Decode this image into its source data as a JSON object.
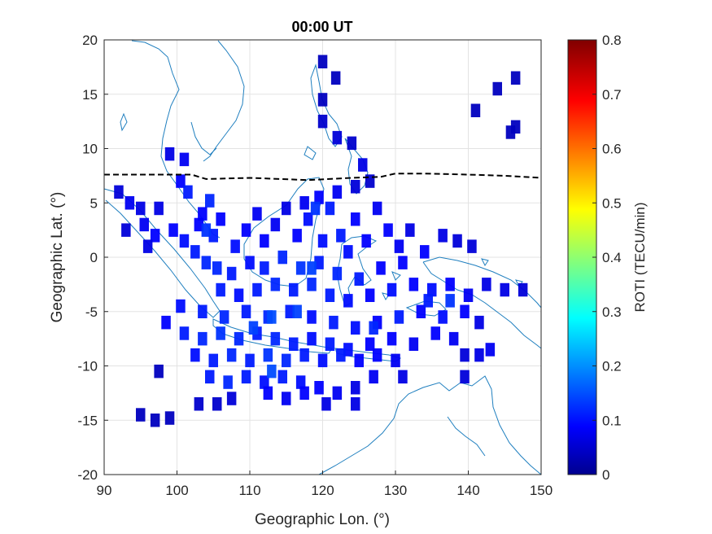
{
  "chart_data": {
    "type": "heatmap",
    "title": "00:00 UT",
    "xlabel": "Geographic Lon. (°)",
    "ylabel": "Geographic Lat. (°)",
    "xlim": [
      90,
      150
    ],
    "ylim": [
      -20,
      20
    ],
    "xticks": [
      "90",
      "100",
      "110",
      "120",
      "130",
      "140",
      "150"
    ],
    "yticks": [
      "20",
      "15",
      "10",
      "5",
      "0",
      "-5",
      "-10",
      "-15",
      "-20"
    ],
    "grid": true,
    "colorbar": {
      "label": "ROTI (TECU/min)",
      "range": [
        0,
        0.8
      ],
      "ticks": [
        "0.8",
        "0.7",
        "0.6",
        "0.5",
        "0.4",
        "0.3",
        "0.2",
        "0.1",
        "0"
      ],
      "colormap": "jet"
    },
    "magnetic_equator_line": {
      "style": "dashed",
      "color": "#000000",
      "points": [
        [
          90,
          7.6
        ],
        [
          100,
          7.6
        ],
        [
          102,
          7.6
        ],
        [
          104,
          7.2
        ],
        [
          110,
          7.3
        ],
        [
          118,
          7.1
        ],
        [
          124,
          7.3
        ],
        [
          128,
          7.4
        ],
        [
          130,
          7.7
        ],
        [
          134,
          7.7
        ],
        [
          140,
          7.6
        ],
        [
          145,
          7.5
        ],
        [
          150,
          7.3
        ]
      ]
    },
    "coastline_color": "#1f7fbf",
    "cells": [
      {
        "lon": 120,
        "lat": 18,
        "v": 0.05
      },
      {
        "lon": 121.8,
        "lat": 16.5,
        "v": 0.05
      },
      {
        "lon": 120,
        "lat": 14.5,
        "v": 0.05
      },
      {
        "lon": 120,
        "lat": 12.5,
        "v": 0.06
      },
      {
        "lon": 122,
        "lat": 11,
        "v": 0.07
      },
      {
        "lon": 124,
        "lat": 10.5,
        "v": 0.06
      },
      {
        "lon": 125.5,
        "lat": 8.5,
        "v": 0.08
      },
      {
        "lon": 124.5,
        "lat": 6.5,
        "v": 0.07
      },
      {
        "lon": 126.5,
        "lat": 7,
        "v": 0.06
      },
      {
        "lon": 146.5,
        "lat": 16.5,
        "v": 0.05
      },
      {
        "lon": 144,
        "lat": 15.5,
        "v": 0.05
      },
      {
        "lon": 141,
        "lat": 13.5,
        "v": 0.05
      },
      {
        "lon": 146.5,
        "lat": 12,
        "v": 0.05
      },
      {
        "lon": 145.8,
        "lat": 11.5,
        "v": 0.05
      },
      {
        "lon": 99,
        "lat": 9.5,
        "v": 0.08
      },
      {
        "lon": 101,
        "lat": 9,
        "v": 0.09
      },
      {
        "lon": 100.5,
        "lat": 7,
        "v": 0.1
      },
      {
        "lon": 101.5,
        "lat": 6,
        "v": 0.12
      },
      {
        "lon": 104.5,
        "lat": 5.2,
        "v": 0.13
      },
      {
        "lon": 103.5,
        "lat": 4,
        "v": 0.1
      },
      {
        "lon": 92,
        "lat": 6,
        "v": 0.07
      },
      {
        "lon": 93.5,
        "lat": 5,
        "v": 0.09
      },
      {
        "lon": 95,
        "lat": 4.5,
        "v": 0.08
      },
      {
        "lon": 93,
        "lat": 2.5,
        "v": 0.07
      },
      {
        "lon": 95.5,
        "lat": 3,
        "v": 0.09
      },
      {
        "lon": 97,
        "lat": 2,
        "v": 0.1
      },
      {
        "lon": 97.5,
        "lat": 4.5,
        "v": 0.08
      },
      {
        "lon": 99.5,
        "lat": 2.5,
        "v": 0.1
      },
      {
        "lon": 96,
        "lat": 1,
        "v": 0.08
      },
      {
        "lon": 101,
        "lat": 1.5,
        "v": 0.11
      },
      {
        "lon": 102.5,
        "lat": 0.5,
        "v": 0.12
      },
      {
        "lon": 104,
        "lat": -0.5,
        "v": 0.13
      },
      {
        "lon": 103,
        "lat": 3,
        "v": 0.1
      },
      {
        "lon": 105,
        "lat": 2,
        "v": 0.12
      },
      {
        "lon": 106,
        "lat": 3.5,
        "v": 0.1
      },
      {
        "lon": 108,
        "lat": 1,
        "v": 0.11
      },
      {
        "lon": 109.5,
        "lat": 2.5,
        "v": 0.1
      },
      {
        "lon": 111,
        "lat": 4,
        "v": 0.09
      },
      {
        "lon": 112,
        "lat": 1.5,
        "v": 0.1
      },
      {
        "lon": 113.5,
        "lat": 3,
        "v": 0.09
      },
      {
        "lon": 115,
        "lat": 4.5,
        "v": 0.08
      },
      {
        "lon": 116.5,
        "lat": 2,
        "v": 0.1
      },
      {
        "lon": 118,
        "lat": 3.5,
        "v": 0.11
      },
      {
        "lon": 117.5,
        "lat": 5,
        "v": 0.09
      },
      {
        "lon": 119.5,
        "lat": 5.5,
        "v": 0.1
      },
      {
        "lon": 121,
        "lat": 4.5,
        "v": 0.12
      },
      {
        "lon": 122,
        "lat": 6,
        "v": 0.09
      },
      {
        "lon": 120,
        "lat": 1.5,
        "v": 0.11
      },
      {
        "lon": 122.5,
        "lat": 2,
        "v": 0.12
      },
      {
        "lon": 124.5,
        "lat": 3.5,
        "v": 0.1
      },
      {
        "lon": 123.5,
        "lat": 0.5,
        "v": 0.11
      },
      {
        "lon": 126,
        "lat": 1.5,
        "v": 0.1
      },
      {
        "lon": 127.5,
        "lat": 4.5,
        "v": 0.09
      },
      {
        "lon": 129,
        "lat": 2.5,
        "v": 0.1
      },
      {
        "lon": 130.5,
        "lat": 1,
        "v": 0.09
      },
      {
        "lon": 132,
        "lat": 2.5,
        "v": 0.08
      },
      {
        "lon": 134,
        "lat": 0.5,
        "v": 0.1
      },
      {
        "lon": 136.5,
        "lat": 2,
        "v": 0.08
      },
      {
        "lon": 138.5,
        "lat": 1.5,
        "v": 0.07
      },
      {
        "lon": 140.5,
        "lat": 1,
        "v": 0.07
      },
      {
        "lon": 131,
        "lat": -0.5,
        "v": 0.1
      },
      {
        "lon": 128,
        "lat": -1,
        "v": 0.1
      },
      {
        "lon": 125,
        "lat": -2,
        "v": 0.12
      },
      {
        "lon": 122,
        "lat": -1.5,
        "v": 0.13
      },
      {
        "lon": 119.5,
        "lat": -0.5,
        "v": 0.12
      },
      {
        "lon": 117,
        "lat": -1,
        "v": 0.14
      },
      {
        "lon": 114.5,
        "lat": 0,
        "v": 0.13
      },
      {
        "lon": 112,
        "lat": -1,
        "v": 0.12
      },
      {
        "lon": 110,
        "lat": -0.5,
        "v": 0.11
      },
      {
        "lon": 107.5,
        "lat": -1.5,
        "v": 0.12
      },
      {
        "lon": 105.5,
        "lat": -1,
        "v": 0.13
      },
      {
        "lon": 106,
        "lat": -3,
        "v": 0.12
      },
      {
        "lon": 108.5,
        "lat": -3.5,
        "v": 0.11
      },
      {
        "lon": 111,
        "lat": -3,
        "v": 0.12
      },
      {
        "lon": 113.5,
        "lat": -2.5,
        "v": 0.13
      },
      {
        "lon": 116,
        "lat": -3,
        "v": 0.12
      },
      {
        "lon": 118.5,
        "lat": -2.5,
        "v": 0.13
      },
      {
        "lon": 121,
        "lat": -3.5,
        "v": 0.12
      },
      {
        "lon": 123.5,
        "lat": -4,
        "v": 0.11
      },
      {
        "lon": 126.5,
        "lat": -3.5,
        "v": 0.1
      },
      {
        "lon": 129.5,
        "lat": -3,
        "v": 0.11
      },
      {
        "lon": 132.5,
        "lat": -2.5,
        "v": 0.1
      },
      {
        "lon": 135,
        "lat": -3,
        "v": 0.11
      },
      {
        "lon": 137.5,
        "lat": -2.5,
        "v": 0.1
      },
      {
        "lon": 140,
        "lat": -3.5,
        "v": 0.09
      },
      {
        "lon": 142.5,
        "lat": -2.5,
        "v": 0.08
      },
      {
        "lon": 145,
        "lat": -3,
        "v": 0.08
      },
      {
        "lon": 147.5,
        "lat": -3,
        "v": 0.07
      },
      {
        "lon": 139.5,
        "lat": -5,
        "v": 0.1
      },
      {
        "lon": 136.5,
        "lat": -5.5,
        "v": 0.11
      },
      {
        "lon": 133.5,
        "lat": -5,
        "v": 0.1
      },
      {
        "lon": 130.5,
        "lat": -5.5,
        "v": 0.12
      },
      {
        "lon": 127.5,
        "lat": -6,
        "v": 0.1
      },
      {
        "lon": 124.5,
        "lat": -6.5,
        "v": 0.11
      },
      {
        "lon": 121.5,
        "lat": -6,
        "v": 0.12
      },
      {
        "lon": 118.5,
        "lat": -5.5,
        "v": 0.11
      },
      {
        "lon": 115.5,
        "lat": -5,
        "v": 0.12
      },
      {
        "lon": 112.5,
        "lat": -5.5,
        "v": 0.13
      },
      {
        "lon": 109.5,
        "lat": -5,
        "v": 0.12
      },
      {
        "lon": 106.5,
        "lat": -5.5,
        "v": 0.13
      },
      {
        "lon": 103.5,
        "lat": -5,
        "v": 0.12
      },
      {
        "lon": 100.5,
        "lat": -4.5,
        "v": 0.11
      },
      {
        "lon": 98.5,
        "lat": -6,
        "v": 0.1
      },
      {
        "lon": 101,
        "lat": -7,
        "v": 0.12
      },
      {
        "lon": 103.5,
        "lat": -7.5,
        "v": 0.13
      },
      {
        "lon": 106,
        "lat": -7,
        "v": 0.14
      },
      {
        "lon": 108.5,
        "lat": -7.5,
        "v": 0.13
      },
      {
        "lon": 111,
        "lat": -7,
        "v": 0.12
      },
      {
        "lon": 113.5,
        "lat": -7.5,
        "v": 0.13
      },
      {
        "lon": 116,
        "lat": -8,
        "v": 0.12
      },
      {
        "lon": 118.5,
        "lat": -7.5,
        "v": 0.11
      },
      {
        "lon": 121,
        "lat": -8,
        "v": 0.12
      },
      {
        "lon": 123.5,
        "lat": -8.5,
        "v": 0.11
      },
      {
        "lon": 126.5,
        "lat": -8,
        "v": 0.1
      },
      {
        "lon": 129.5,
        "lat": -7.5,
        "v": 0.1
      },
      {
        "lon": 132.5,
        "lat": -8,
        "v": 0.09
      },
      {
        "lon": 135.5,
        "lat": -7,
        "v": 0.1
      },
      {
        "lon": 138,
        "lat": -7.5,
        "v": 0.09
      },
      {
        "lon": 141.5,
        "lat": -6,
        "v": 0.08
      },
      {
        "lon": 143,
        "lat": -8.5,
        "v": 0.09
      },
      {
        "lon": 141.5,
        "lat": -9,
        "v": 0.08
      },
      {
        "lon": 139.5,
        "lat": -9,
        "v": 0.07
      },
      {
        "lon": 139.5,
        "lat": -11,
        "v": 0.07
      },
      {
        "lon": 102.5,
        "lat": -9,
        "v": 0.11
      },
      {
        "lon": 105,
        "lat": -9.5,
        "v": 0.12
      },
      {
        "lon": 107.5,
        "lat": -9,
        "v": 0.13
      },
      {
        "lon": 110,
        "lat": -9.5,
        "v": 0.12
      },
      {
        "lon": 112.5,
        "lat": -9,
        "v": 0.14
      },
      {
        "lon": 115,
        "lat": -9.5,
        "v": 0.13
      },
      {
        "lon": 117.5,
        "lat": -9,
        "v": 0.12
      },
      {
        "lon": 120,
        "lat": -9.5,
        "v": 0.11
      },
      {
        "lon": 122.5,
        "lat": -9,
        "v": 0.12
      },
      {
        "lon": 125,
        "lat": -9.5,
        "v": 0.1
      },
      {
        "lon": 127.5,
        "lat": -9,
        "v": 0.1
      },
      {
        "lon": 130,
        "lat": -9.5,
        "v": 0.09
      },
      {
        "lon": 104.5,
        "lat": -11,
        "v": 0.12
      },
      {
        "lon": 107,
        "lat": -11.5,
        "v": 0.13
      },
      {
        "lon": 109.5,
        "lat": -11,
        "v": 0.12
      },
      {
        "lon": 112,
        "lat": -11.5,
        "v": 0.11
      },
      {
        "lon": 114.5,
        "lat": -11,
        "v": 0.12
      },
      {
        "lon": 117,
        "lat": -11.5,
        "v": 0.11
      },
      {
        "lon": 119.5,
        "lat": -12,
        "v": 0.1
      },
      {
        "lon": 122,
        "lat": -12.5,
        "v": 0.09
      },
      {
        "lon": 124.5,
        "lat": -12,
        "v": 0.08
      },
      {
        "lon": 127,
        "lat": -11,
        "v": 0.09
      },
      {
        "lon": 131,
        "lat": -11,
        "v": 0.08
      },
      {
        "lon": 120.5,
        "lat": -13.5,
        "v": 0.08
      },
      {
        "lon": 112.5,
        "lat": -12.5,
        "v": 0.1
      },
      {
        "lon": 115,
        "lat": -13,
        "v": 0.09
      },
      {
        "lon": 117.5,
        "lat": -12.5,
        "v": 0.1
      },
      {
        "lon": 97.5,
        "lat": -10.5,
        "v": 0.05
      },
      {
        "lon": 103,
        "lat": -13.5,
        "v": 0.06
      },
      {
        "lon": 105.5,
        "lat": -13.5,
        "v": 0.06
      },
      {
        "lon": 107.5,
        "lat": -13,
        "v": 0.07
      },
      {
        "lon": 95,
        "lat": -14.5,
        "v": 0.05
      },
      {
        "lon": 97,
        "lat": -15,
        "v": 0.05
      },
      {
        "lon": 99,
        "lat": -14.8,
        "v": 0.05
      },
      {
        "lon": 124.5,
        "lat": -13.5,
        "v": 0.08
      },
      {
        "lon": 113,
        "lat": -5.5,
        "v": 0.16
      },
      {
        "lon": 116.5,
        "lat": -5,
        "v": 0.15
      },
      {
        "lon": 118.5,
        "lat": -1,
        "v": 0.15
      },
      {
        "lon": 119,
        "lat": 4.5,
        "v": 0.14
      },
      {
        "lon": 104,
        "lat": 2.5,
        "v": 0.14
      },
      {
        "lon": 113,
        "lat": -10.5,
        "v": 0.16
      },
      {
        "lon": 110.5,
        "lat": -6.5,
        "v": 0.15
      },
      {
        "lon": 127,
        "lat": -6.5,
        "v": 0.13
      },
      {
        "lon": 134.5,
        "lat": -4,
        "v": 0.12
      },
      {
        "lon": 137.5,
        "lat": -4,
        "v": 0.14
      }
    ]
  }
}
